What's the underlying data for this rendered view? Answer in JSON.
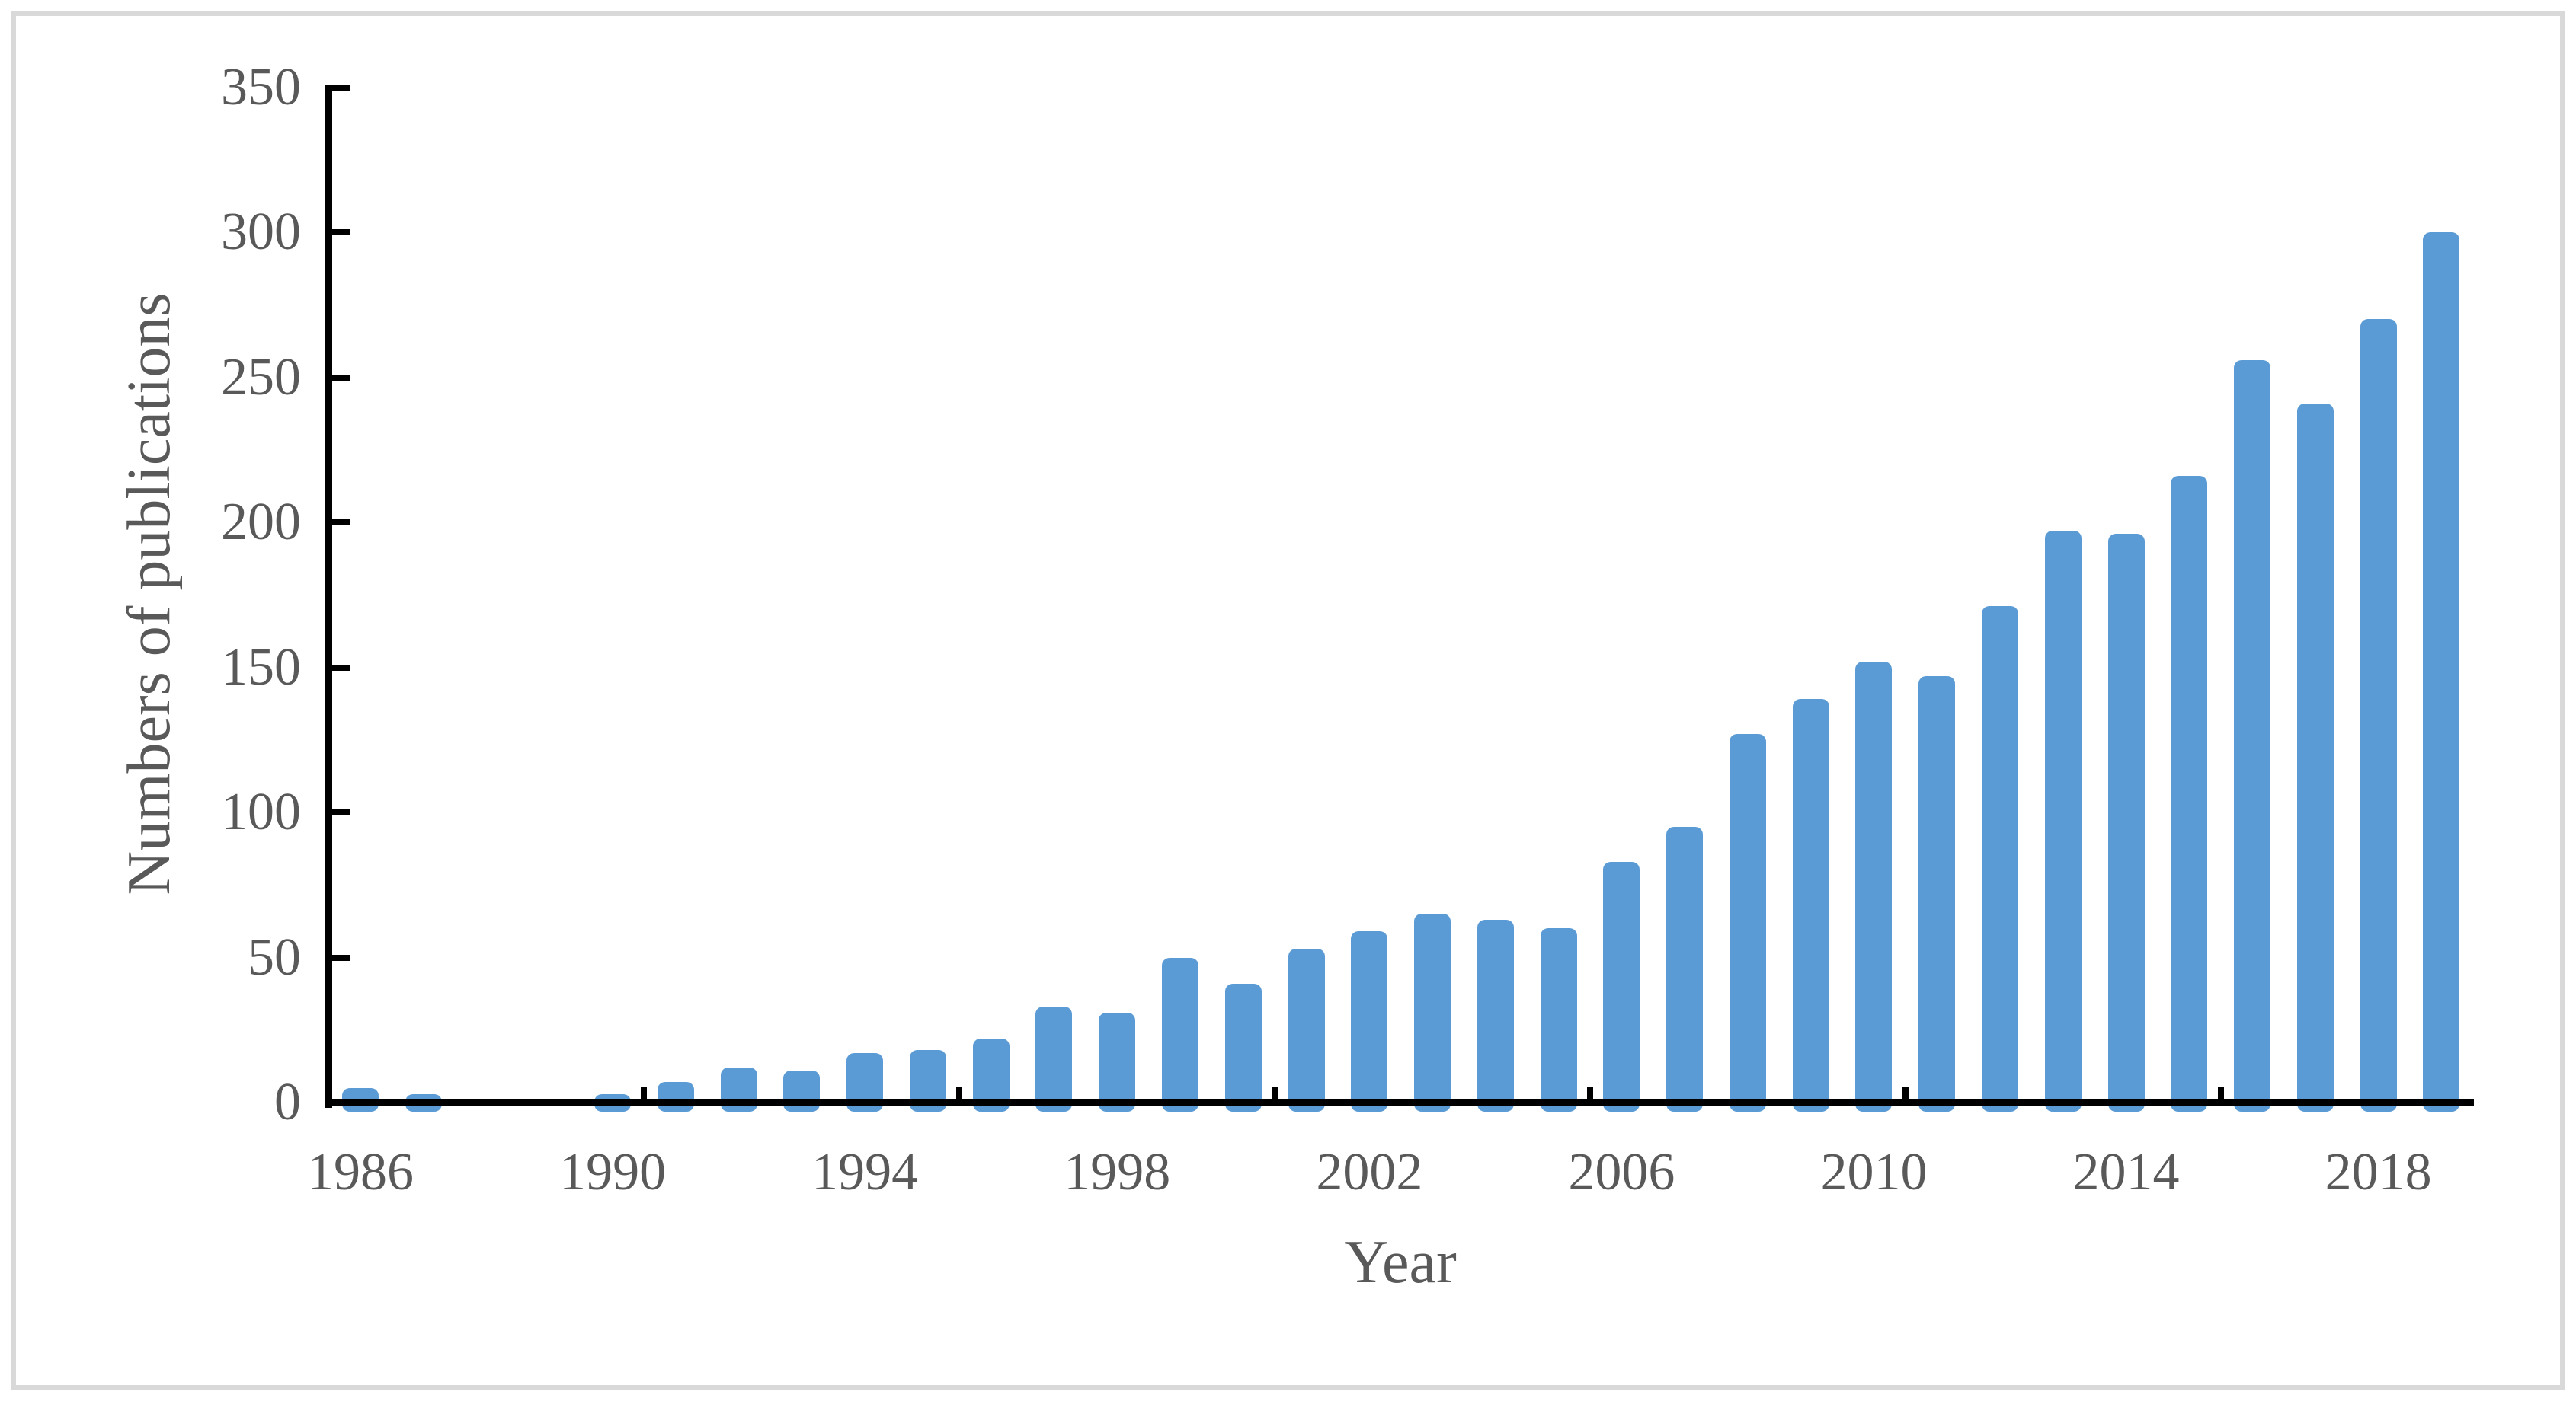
{
  "figure": {
    "background_color": "#ffffff",
    "frame_color": "#d9d9d9",
    "axis_color": "#000000",
    "text_color": "#595959",
    "bar_color": "#5b9bd5"
  },
  "chart_data": {
    "type": "bar",
    "title": "",
    "xlabel": "Year",
    "ylabel": "Numbers of publications",
    "categories": [
      1986,
      1987,
      1988,
      1989,
      1990,
      1991,
      1992,
      1993,
      1994,
      1995,
      1996,
      1997,
      1998,
      1999,
      2000,
      2001,
      2002,
      2003,
      2004,
      2005,
      2006,
      2007,
      2008,
      2009,
      2010,
      2011,
      2012,
      2013,
      2014,
      2015,
      2016,
      2017,
      2018,
      2019
    ],
    "values": [
      5,
      3,
      0,
      0,
      3,
      7,
      12,
      11,
      17,
      18,
      22,
      33,
      31,
      50,
      41,
      53,
      59,
      65,
      63,
      60,
      83,
      95,
      127,
      139,
      152,
      147,
      171,
      197,
      196,
      216,
      256,
      241,
      270,
      300
    ],
    "ylim": [
      0,
      350
    ],
    "yticks": [
      0,
      50,
      100,
      150,
      200,
      250,
      300,
      350
    ],
    "xtick_labels_shown": [
      "1986",
      "1990",
      "1994",
      "1998",
      "2002",
      "2006",
      "2010",
      "2014",
      "2018"
    ],
    "x_label_interval": 4,
    "x_tick_interval": 5,
    "grid": false,
    "legend": false,
    "bar_color": "#5b9bd5",
    "axis_color": "#000000",
    "label_color": "#595959"
  }
}
